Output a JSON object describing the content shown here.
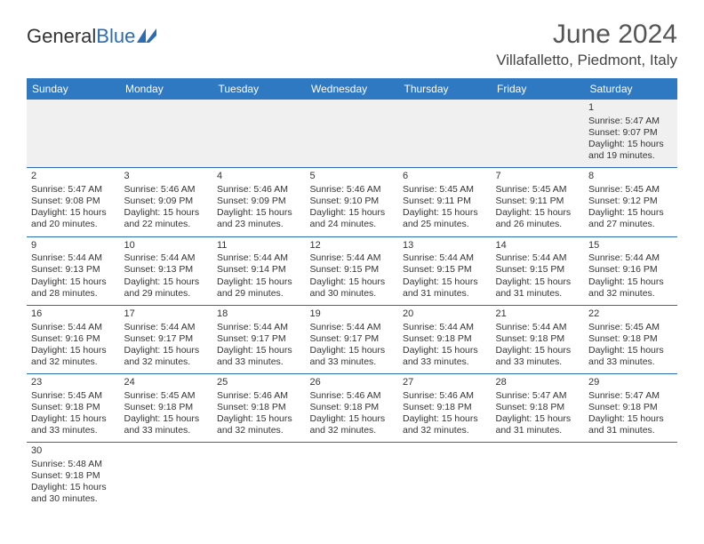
{
  "brand": {
    "part1": "General",
    "part2": "Blue"
  },
  "title": "June 2024",
  "location": "Villafalletto, Piedmont, Italy",
  "colors": {
    "header_bg": "#2f78c2",
    "accent": "#2a6db5"
  },
  "weekdays": [
    "Sunday",
    "Monday",
    "Tuesday",
    "Wednesday",
    "Thursday",
    "Friday",
    "Saturday"
  ],
  "weeks": [
    [
      null,
      null,
      null,
      null,
      null,
      null,
      {
        "n": "1",
        "sr": "Sunrise: 5:47 AM",
        "ss": "Sunset: 9:07 PM",
        "d1": "Daylight: 15 hours",
        "d2": "and 19 minutes."
      }
    ],
    [
      {
        "n": "2",
        "sr": "Sunrise: 5:47 AM",
        "ss": "Sunset: 9:08 PM",
        "d1": "Daylight: 15 hours",
        "d2": "and 20 minutes."
      },
      {
        "n": "3",
        "sr": "Sunrise: 5:46 AM",
        "ss": "Sunset: 9:09 PM",
        "d1": "Daylight: 15 hours",
        "d2": "and 22 minutes."
      },
      {
        "n": "4",
        "sr": "Sunrise: 5:46 AM",
        "ss": "Sunset: 9:09 PM",
        "d1": "Daylight: 15 hours",
        "d2": "and 23 minutes."
      },
      {
        "n": "5",
        "sr": "Sunrise: 5:46 AM",
        "ss": "Sunset: 9:10 PM",
        "d1": "Daylight: 15 hours",
        "d2": "and 24 minutes."
      },
      {
        "n": "6",
        "sr": "Sunrise: 5:45 AM",
        "ss": "Sunset: 9:11 PM",
        "d1": "Daylight: 15 hours",
        "d2": "and 25 minutes."
      },
      {
        "n": "7",
        "sr": "Sunrise: 5:45 AM",
        "ss": "Sunset: 9:11 PM",
        "d1": "Daylight: 15 hours",
        "d2": "and 26 minutes."
      },
      {
        "n": "8",
        "sr": "Sunrise: 5:45 AM",
        "ss": "Sunset: 9:12 PM",
        "d1": "Daylight: 15 hours",
        "d2": "and 27 minutes."
      }
    ],
    [
      {
        "n": "9",
        "sr": "Sunrise: 5:44 AM",
        "ss": "Sunset: 9:13 PM",
        "d1": "Daylight: 15 hours",
        "d2": "and 28 minutes."
      },
      {
        "n": "10",
        "sr": "Sunrise: 5:44 AM",
        "ss": "Sunset: 9:13 PM",
        "d1": "Daylight: 15 hours",
        "d2": "and 29 minutes."
      },
      {
        "n": "11",
        "sr": "Sunrise: 5:44 AM",
        "ss": "Sunset: 9:14 PM",
        "d1": "Daylight: 15 hours",
        "d2": "and 29 minutes."
      },
      {
        "n": "12",
        "sr": "Sunrise: 5:44 AM",
        "ss": "Sunset: 9:15 PM",
        "d1": "Daylight: 15 hours",
        "d2": "and 30 minutes."
      },
      {
        "n": "13",
        "sr": "Sunrise: 5:44 AM",
        "ss": "Sunset: 9:15 PM",
        "d1": "Daylight: 15 hours",
        "d2": "and 31 minutes."
      },
      {
        "n": "14",
        "sr": "Sunrise: 5:44 AM",
        "ss": "Sunset: 9:15 PM",
        "d1": "Daylight: 15 hours",
        "d2": "and 31 minutes."
      },
      {
        "n": "15",
        "sr": "Sunrise: 5:44 AM",
        "ss": "Sunset: 9:16 PM",
        "d1": "Daylight: 15 hours",
        "d2": "and 32 minutes."
      }
    ],
    [
      {
        "n": "16",
        "sr": "Sunrise: 5:44 AM",
        "ss": "Sunset: 9:16 PM",
        "d1": "Daylight: 15 hours",
        "d2": "and 32 minutes."
      },
      {
        "n": "17",
        "sr": "Sunrise: 5:44 AM",
        "ss": "Sunset: 9:17 PM",
        "d1": "Daylight: 15 hours",
        "d2": "and 32 minutes."
      },
      {
        "n": "18",
        "sr": "Sunrise: 5:44 AM",
        "ss": "Sunset: 9:17 PM",
        "d1": "Daylight: 15 hours",
        "d2": "and 33 minutes."
      },
      {
        "n": "19",
        "sr": "Sunrise: 5:44 AM",
        "ss": "Sunset: 9:17 PM",
        "d1": "Daylight: 15 hours",
        "d2": "and 33 minutes."
      },
      {
        "n": "20",
        "sr": "Sunrise: 5:44 AM",
        "ss": "Sunset: 9:18 PM",
        "d1": "Daylight: 15 hours",
        "d2": "and 33 minutes."
      },
      {
        "n": "21",
        "sr": "Sunrise: 5:44 AM",
        "ss": "Sunset: 9:18 PM",
        "d1": "Daylight: 15 hours",
        "d2": "and 33 minutes."
      },
      {
        "n": "22",
        "sr": "Sunrise: 5:45 AM",
        "ss": "Sunset: 9:18 PM",
        "d1": "Daylight: 15 hours",
        "d2": "and 33 minutes."
      }
    ],
    [
      {
        "n": "23",
        "sr": "Sunrise: 5:45 AM",
        "ss": "Sunset: 9:18 PM",
        "d1": "Daylight: 15 hours",
        "d2": "and 33 minutes."
      },
      {
        "n": "24",
        "sr": "Sunrise: 5:45 AM",
        "ss": "Sunset: 9:18 PM",
        "d1": "Daylight: 15 hours",
        "d2": "and 33 minutes."
      },
      {
        "n": "25",
        "sr": "Sunrise: 5:46 AM",
        "ss": "Sunset: 9:18 PM",
        "d1": "Daylight: 15 hours",
        "d2": "and 32 minutes."
      },
      {
        "n": "26",
        "sr": "Sunrise: 5:46 AM",
        "ss": "Sunset: 9:18 PM",
        "d1": "Daylight: 15 hours",
        "d2": "and 32 minutes."
      },
      {
        "n": "27",
        "sr": "Sunrise: 5:46 AM",
        "ss": "Sunset: 9:18 PM",
        "d1": "Daylight: 15 hours",
        "d2": "and 32 minutes."
      },
      {
        "n": "28",
        "sr": "Sunrise: 5:47 AM",
        "ss": "Sunset: 9:18 PM",
        "d1": "Daylight: 15 hours",
        "d2": "and 31 minutes."
      },
      {
        "n": "29",
        "sr": "Sunrise: 5:47 AM",
        "ss": "Sunset: 9:18 PM",
        "d1": "Daylight: 15 hours",
        "d2": "and 31 minutes."
      }
    ],
    [
      {
        "n": "30",
        "sr": "Sunrise: 5:48 AM",
        "ss": "Sunset: 9:18 PM",
        "d1": "Daylight: 15 hours",
        "d2": "and 30 minutes."
      },
      null,
      null,
      null,
      null,
      null,
      null
    ]
  ]
}
